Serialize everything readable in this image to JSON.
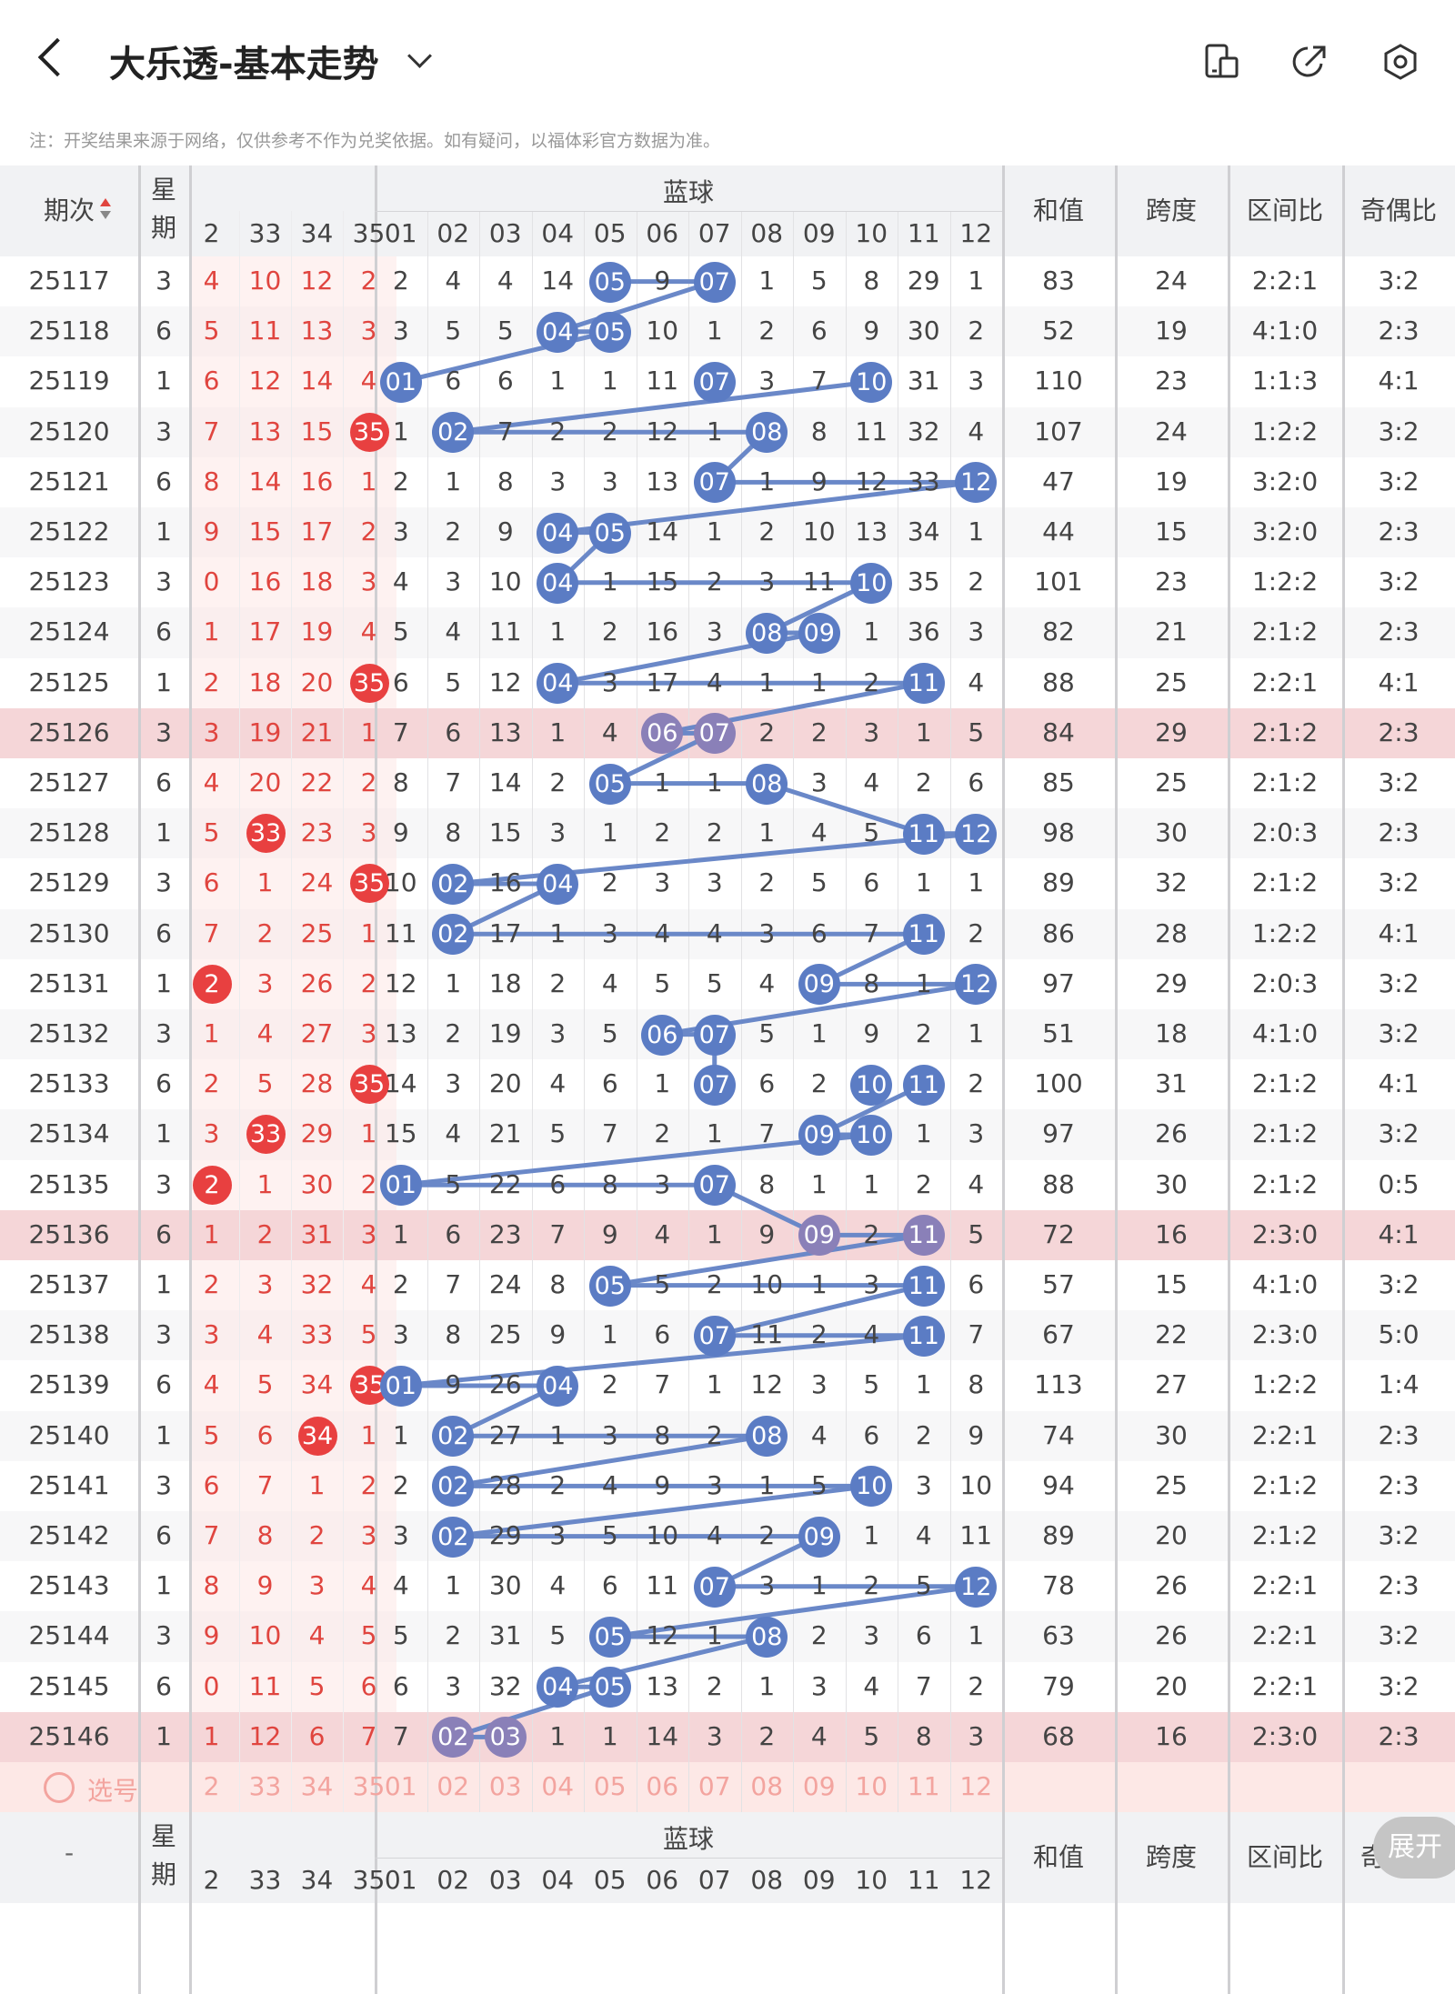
{
  "header": {
    "title": "大乐透-基本走势",
    "note": "注：开奖结果来源于网络，仅供参考不作为兑奖依据。如有疑问，以福体彩官方数据为准。",
    "icons": [
      "back-icon",
      "chevron-down-icon",
      "phone-icon",
      "share-icon",
      "settings-icon"
    ]
  },
  "table": {
    "col_period": "期次",
    "col_week": "星期",
    "blue_group": "蓝球",
    "col_sum": "和值",
    "col_span": "跨度",
    "col_zone": "区间比",
    "col_parity": "奇偶比",
    "red_cols": [
      "2",
      "33",
      "34",
      "35"
    ],
    "blue_cols": [
      "01",
      "02",
      "03",
      "04",
      "05",
      "06",
      "07",
      "08",
      "09",
      "10",
      "11",
      "12"
    ],
    "rows": [
      {
        "period": "25117",
        "week": "3",
        "red": [
          "4",
          "10",
          "12",
          "2"
        ],
        "blue": [
          "2",
          "4",
          "4",
          "14",
          "05",
          "9",
          "07",
          "1",
          "5",
          "8",
          "29",
          "1"
        ],
        "sum": "83",
        "span": "24",
        "zone": "2:2:1",
        "parity": "3:2"
      },
      {
        "period": "25118",
        "week": "6",
        "red": [
          "5",
          "11",
          "13",
          "3"
        ],
        "blue": [
          "3",
          "5",
          "5",
          "04",
          "05",
          "10",
          "1",
          "2",
          "6",
          "9",
          "30",
          "2"
        ],
        "sum": "52",
        "span": "19",
        "zone": "4:1:0",
        "parity": "2:3"
      },
      {
        "period": "25119",
        "week": "1",
        "red": [
          "6",
          "12",
          "14",
          "4"
        ],
        "blue": [
          "01",
          "6",
          "6",
          "1",
          "1",
          "11",
          "07",
          "3",
          "7",
          "10",
          "31",
          "3"
        ],
        "sum": "110",
        "span": "23",
        "zone": "1:1:3",
        "parity": "4:1"
      },
      {
        "period": "25120",
        "week": "3",
        "red": [
          "7",
          "13",
          "15",
          "35"
        ],
        "blue": [
          "1",
          "02",
          "7",
          "2",
          "2",
          "12",
          "1",
          "08",
          "8",
          "11",
          "32",
          "4"
        ],
        "sum": "107",
        "span": "24",
        "zone": "1:2:2",
        "parity": "3:2"
      },
      {
        "period": "25121",
        "week": "6",
        "red": [
          "8",
          "14",
          "16",
          "1"
        ],
        "blue": [
          "2",
          "1",
          "8",
          "3",
          "3",
          "13",
          "07",
          "1",
          "9",
          "12",
          "33",
          "12"
        ],
        "sum": "47",
        "span": "19",
        "zone": "3:2:0",
        "parity": "3:2"
      },
      {
        "period": "25122",
        "week": "1",
        "red": [
          "9",
          "15",
          "17",
          "2"
        ],
        "blue": [
          "3",
          "2",
          "9",
          "04",
          "05",
          "14",
          "1",
          "2",
          "10",
          "13",
          "34",
          "1"
        ],
        "sum": "44",
        "span": "15",
        "zone": "3:2:0",
        "parity": "2:3"
      },
      {
        "period": "25123",
        "week": "3",
        "red": [
          "0",
          "16",
          "18",
          "3"
        ],
        "blue": [
          "4",
          "3",
          "10",
          "04",
          "1",
          "15",
          "2",
          "3",
          "11",
          "10",
          "35",
          "2"
        ],
        "sum": "101",
        "span": "23",
        "zone": "1:2:2",
        "parity": "3:2"
      },
      {
        "period": "25124",
        "week": "6",
        "red": [
          "1",
          "17",
          "19",
          "4"
        ],
        "blue": [
          "5",
          "4",
          "11",
          "1",
          "2",
          "16",
          "3",
          "08",
          "09",
          "1",
          "36",
          "3"
        ],
        "sum": "82",
        "span": "21",
        "zone": "2:1:2",
        "parity": "2:3"
      },
      {
        "period": "25125",
        "week": "1",
        "red": [
          "2",
          "18",
          "20",
          "35"
        ],
        "blue": [
          "6",
          "5",
          "12",
          "04",
          "3",
          "17",
          "4",
          "1",
          "1",
          "2",
          "11",
          "4"
        ],
        "sum": "88",
        "span": "25",
        "zone": "2:2:1",
        "parity": "4:1"
      },
      {
        "period": "25126",
        "week": "3",
        "red": [
          "3",
          "19",
          "21",
          "1"
        ],
        "blue": [
          "7",
          "6",
          "13",
          "1",
          "4",
          "06",
          "07",
          "2",
          "2",
          "3",
          "1",
          "5"
        ],
        "sum": "84",
        "span": "29",
        "zone": "2:1:2",
        "parity": "2:3"
      },
      {
        "period": "25127",
        "week": "6",
        "red": [
          "4",
          "20",
          "22",
          "2"
        ],
        "blue": [
          "8",
          "7",
          "14",
          "2",
          "05",
          "1",
          "1",
          "08",
          "3",
          "4",
          "2",
          "6"
        ],
        "sum": "85",
        "span": "25",
        "zone": "2:1:2",
        "parity": "3:2"
      },
      {
        "period": "25128",
        "week": "1",
        "red": [
          "5",
          "33",
          "23",
          "3"
        ],
        "blue": [
          "9",
          "8",
          "15",
          "3",
          "1",
          "2",
          "2",
          "1",
          "4",
          "5",
          "11",
          "12"
        ],
        "sum": "98",
        "span": "30",
        "zone": "2:0:3",
        "parity": "2:3"
      },
      {
        "period": "25129",
        "week": "3",
        "red": [
          "6",
          "1",
          "24",
          "35"
        ],
        "blue": [
          "10",
          "02",
          "16",
          "04",
          "2",
          "3",
          "3",
          "2",
          "5",
          "6",
          "1",
          "1"
        ],
        "sum": "89",
        "span": "32",
        "zone": "2:1:2",
        "parity": "3:2"
      },
      {
        "period": "25130",
        "week": "6",
        "red": [
          "7",
          "2",
          "25",
          "1"
        ],
        "blue": [
          "11",
          "02",
          "17",
          "1",
          "3",
          "4",
          "4",
          "3",
          "6",
          "7",
          "11",
          "2"
        ],
        "sum": "86",
        "span": "28",
        "zone": "1:2:2",
        "parity": "4:1"
      },
      {
        "period": "25131",
        "week": "1",
        "red": [
          "2",
          "3",
          "26",
          "2"
        ],
        "blue": [
          "12",
          "1",
          "18",
          "2",
          "4",
          "5",
          "5",
          "4",
          "09",
          "8",
          "1",
          "12"
        ],
        "sum": "97",
        "span": "29",
        "zone": "2:0:3",
        "parity": "3:2"
      },
      {
        "period": "25132",
        "week": "3",
        "red": [
          "1",
          "4",
          "27",
          "3"
        ],
        "blue": [
          "13",
          "2",
          "19",
          "3",
          "5",
          "06",
          "07",
          "5",
          "1",
          "9",
          "2",
          "1"
        ],
        "sum": "51",
        "span": "18",
        "zone": "4:1:0",
        "parity": "3:2"
      },
      {
        "period": "25133",
        "week": "6",
        "red": [
          "2",
          "5",
          "28",
          "35"
        ],
        "blue": [
          "14",
          "3",
          "20",
          "4",
          "6",
          "1",
          "07",
          "6",
          "2",
          "10",
          "11",
          "2"
        ],
        "sum": "100",
        "span": "31",
        "zone": "2:1:2",
        "parity": "4:1"
      },
      {
        "period": "25134",
        "week": "1",
        "red": [
          "3",
          "33",
          "29",
          "1"
        ],
        "blue": [
          "15",
          "4",
          "21",
          "5",
          "7",
          "2",
          "1",
          "7",
          "09",
          "10",
          "1",
          "3"
        ],
        "sum": "97",
        "span": "26",
        "zone": "2:1:2",
        "parity": "3:2"
      },
      {
        "period": "25135",
        "week": "3",
        "red": [
          "2",
          "1",
          "30",
          "2"
        ],
        "blue": [
          "01",
          "5",
          "22",
          "6",
          "8",
          "3",
          "07",
          "8",
          "1",
          "1",
          "2",
          "4"
        ],
        "sum": "88",
        "span": "30",
        "zone": "2:1:2",
        "parity": "0:5"
      },
      {
        "period": "25136",
        "week": "6",
        "red": [
          "1",
          "2",
          "31",
          "3"
        ],
        "blue": [
          "1",
          "6",
          "23",
          "7",
          "9",
          "4",
          "1",
          "9",
          "09",
          "2",
          "11",
          "5"
        ],
        "sum": "72",
        "span": "16",
        "zone": "2:3:0",
        "parity": "4:1"
      },
      {
        "period": "25137",
        "week": "1",
        "red": [
          "2",
          "3",
          "32",
          "4"
        ],
        "blue": [
          "2",
          "7",
          "24",
          "8",
          "05",
          "5",
          "2",
          "10",
          "1",
          "3",
          "11",
          "6"
        ],
        "sum": "57",
        "span": "15",
        "zone": "4:1:0",
        "parity": "3:2"
      },
      {
        "period": "25138",
        "week": "3",
        "red": [
          "3",
          "4",
          "33",
          "5"
        ],
        "blue": [
          "3",
          "8",
          "25",
          "9",
          "1",
          "6",
          "07",
          "11",
          "2",
          "4",
          "11",
          "7"
        ],
        "sum": "67",
        "span": "22",
        "zone": "2:3:0",
        "parity": "5:0"
      },
      {
        "period": "25139",
        "week": "6",
        "red": [
          "4",
          "5",
          "34",
          "35"
        ],
        "blue": [
          "01",
          "9",
          "26",
          "04",
          "2",
          "7",
          "1",
          "12",
          "3",
          "5",
          "1",
          "8"
        ],
        "sum": "113",
        "span": "27",
        "zone": "1:2:2",
        "parity": "1:4"
      },
      {
        "period": "25140",
        "week": "1",
        "red": [
          "5",
          "6",
          "34",
          "1"
        ],
        "blue": [
          "1",
          "02",
          "27",
          "1",
          "3",
          "8",
          "2",
          "08",
          "4",
          "6",
          "2",
          "9"
        ],
        "sum": "74",
        "span": "30",
        "zone": "2:2:1",
        "parity": "2:3"
      },
      {
        "period": "25141",
        "week": "3",
        "red": [
          "6",
          "7",
          "1",
          "2"
        ],
        "blue": [
          "2",
          "02",
          "28",
          "2",
          "4",
          "9",
          "3",
          "1",
          "5",
          "10",
          "3",
          "10"
        ],
        "sum": "94",
        "span": "25",
        "zone": "2:1:2",
        "parity": "2:3"
      },
      {
        "period": "25142",
        "week": "6",
        "red": [
          "7",
          "8",
          "2",
          "3"
        ],
        "blue": [
          "3",
          "02",
          "29",
          "3",
          "5",
          "10",
          "4",
          "2",
          "09",
          "1",
          "4",
          "11"
        ],
        "sum": "89",
        "span": "20",
        "zone": "2:1:2",
        "parity": "3:2"
      },
      {
        "period": "25143",
        "week": "1",
        "red": [
          "8",
          "9",
          "3",
          "4"
        ],
        "blue": [
          "4",
          "1",
          "30",
          "4",
          "6",
          "11",
          "07",
          "3",
          "1",
          "2",
          "5",
          "12"
        ],
        "sum": "78",
        "span": "26",
        "zone": "2:2:1",
        "parity": "2:3"
      },
      {
        "period": "25144",
        "week": "3",
        "red": [
          "9",
          "10",
          "4",
          "5"
        ],
        "blue": [
          "5",
          "2",
          "31",
          "5",
          "05",
          "12",
          "1",
          "08",
          "2",
          "3",
          "6",
          "1"
        ],
        "sum": "63",
        "span": "26",
        "zone": "2:2:1",
        "parity": "3:2"
      },
      {
        "period": "25145",
        "week": "6",
        "red": [
          "0",
          "11",
          "5",
          "6"
        ],
        "blue": [
          "6",
          "3",
          "32",
          "04",
          "05",
          "13",
          "2",
          "1",
          "3",
          "4",
          "7",
          "2"
        ],
        "sum": "79",
        "span": "20",
        "zone": "2:2:1",
        "parity": "3:2"
      },
      {
        "period": "25146",
        "week": "1",
        "red": [
          "1",
          "12",
          "6",
          "7"
        ],
        "blue": [
          "7",
          "02",
          "03",
          "1",
          "1",
          "14",
          "3",
          "2",
          "4",
          "5",
          "8",
          "3"
        ],
        "sum": "68",
        "span": "16",
        "zone": "2:3:0",
        "parity": "2:3"
      }
    ],
    "red_ball_marks": [
      {
        "row": 3,
        "col": 3
      },
      {
        "row": 8,
        "col": 3
      },
      {
        "row": 11,
        "col": 1
      },
      {
        "row": 12,
        "col": 3
      },
      {
        "row": 14,
        "col": 0
      },
      {
        "row": 16,
        "col": 3
      },
      {
        "row": 17,
        "col": 1
      },
      {
        "row": 18,
        "col": 0
      },
      {
        "row": 22,
        "col": 3
      },
      {
        "row": 23,
        "col": 2
      }
    ],
    "highlight_rows": [
      9,
      19,
      29
    ],
    "select_label": "选号",
    "footer_dash": "-",
    "expand_label": "展开",
    "colors": {
      "blue_ball": "#5b7cc4",
      "blue_ball_hl": "#8a80b8",
      "red_ball": "#e84040",
      "line": "#6a88c8",
      "red_text": "#e0453f",
      "hl_row": "#f5d6d8",
      "pick_row": "#fde8e6"
    }
  }
}
